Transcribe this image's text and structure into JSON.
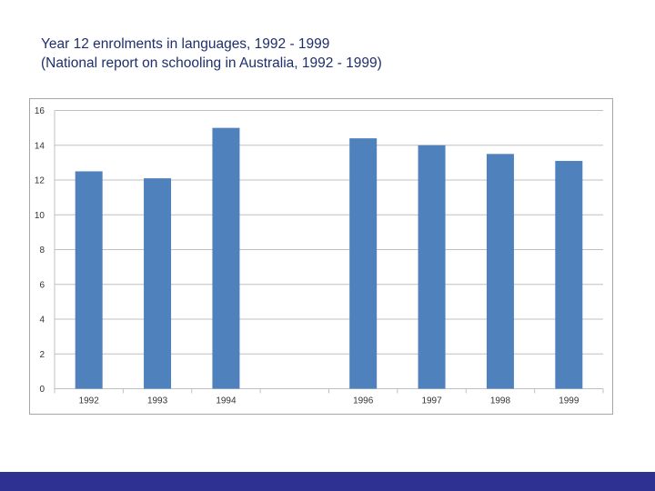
{
  "title": {
    "line1": "Year 12 enrolments in languages, 1992 - 1999",
    "line2": "(National report on schooling in Australia, 1992 - 1999)"
  },
  "colors": {
    "bar": "#4f81bd",
    "grid": "#c0c0c0",
    "title": "#1f2f6b",
    "footer": "#2e3192"
  },
  "chart_data": {
    "type": "bar",
    "categories": [
      "1992",
      "1993",
      "1994",
      "",
      "1996",
      "1997",
      "1998",
      "1999"
    ],
    "values": [
      12.5,
      12.1,
      15.0,
      null,
      14.4,
      14.0,
      13.5,
      13.1
    ],
    "title": "",
    "xlabel": "",
    "ylabel": "",
    "ylim": [
      0,
      16
    ],
    "yticks": [
      0,
      2,
      4,
      6,
      8,
      10,
      12,
      14,
      16
    ],
    "grid": true,
    "legend": "none"
  }
}
